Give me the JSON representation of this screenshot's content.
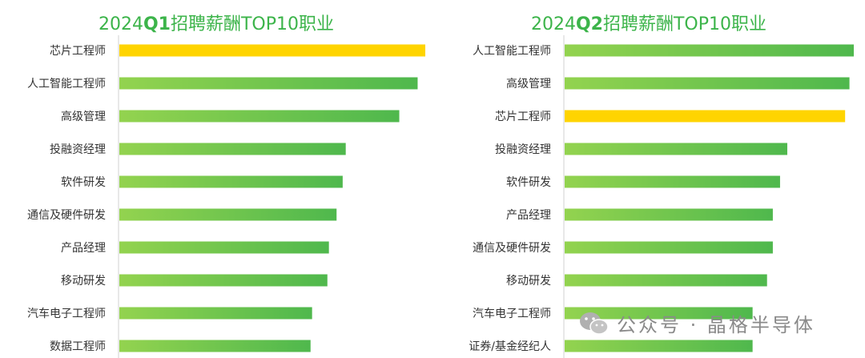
{
  "chart_data": [
    {
      "type": "bar",
      "orientation": "horizontal",
      "title_prefix": "2024",
      "title_bold": "Q1",
      "title_suffix": "招聘薪酬TOP10职业",
      "categories": [
        "芯片工程师",
        "人工智能工程师",
        "高级管理",
        "投融资经理",
        "软件研发",
        "通信及硬件研发",
        "产品经理",
        "移动研发",
        "汽车电子工程师",
        "数据工程师"
      ],
      "values": [
        100,
        97.5,
        91.5,
        74,
        73,
        71,
        68.5,
        68,
        63,
        62.5
      ],
      "highlight": [
        "芯片工程师"
      ],
      "xlim": [
        0,
        100
      ]
    },
    {
      "type": "bar",
      "orientation": "horizontal",
      "title_prefix": "2024",
      "title_bold": "Q2",
      "title_suffix": "招聘薪酬TOP10职业",
      "categories": [
        "人工智能工程师",
        "高级管理",
        "芯片工程师",
        "投融资经理",
        "软件研发",
        "产品经理",
        "通信及硬件研发",
        "移动研发",
        "汽车电子工程师",
        "证券/基金经纪人"
      ],
      "values": [
        100,
        98.5,
        97,
        77,
        74.5,
        72,
        72,
        70,
        65,
        65
      ],
      "highlight": [
        "芯片工程师"
      ],
      "xlim": [
        0,
        100
      ]
    }
  ],
  "colors": {
    "title": "#3cb44a",
    "bar_light": "#93d34f",
    "bar_dark": "#4fb84d",
    "highlight": "#ffd400",
    "axis": "#d0d0d0",
    "label": "#333333"
  },
  "watermark": {
    "icon": "wechat-icon",
    "text": "公众号 · 晶格半导体"
  }
}
